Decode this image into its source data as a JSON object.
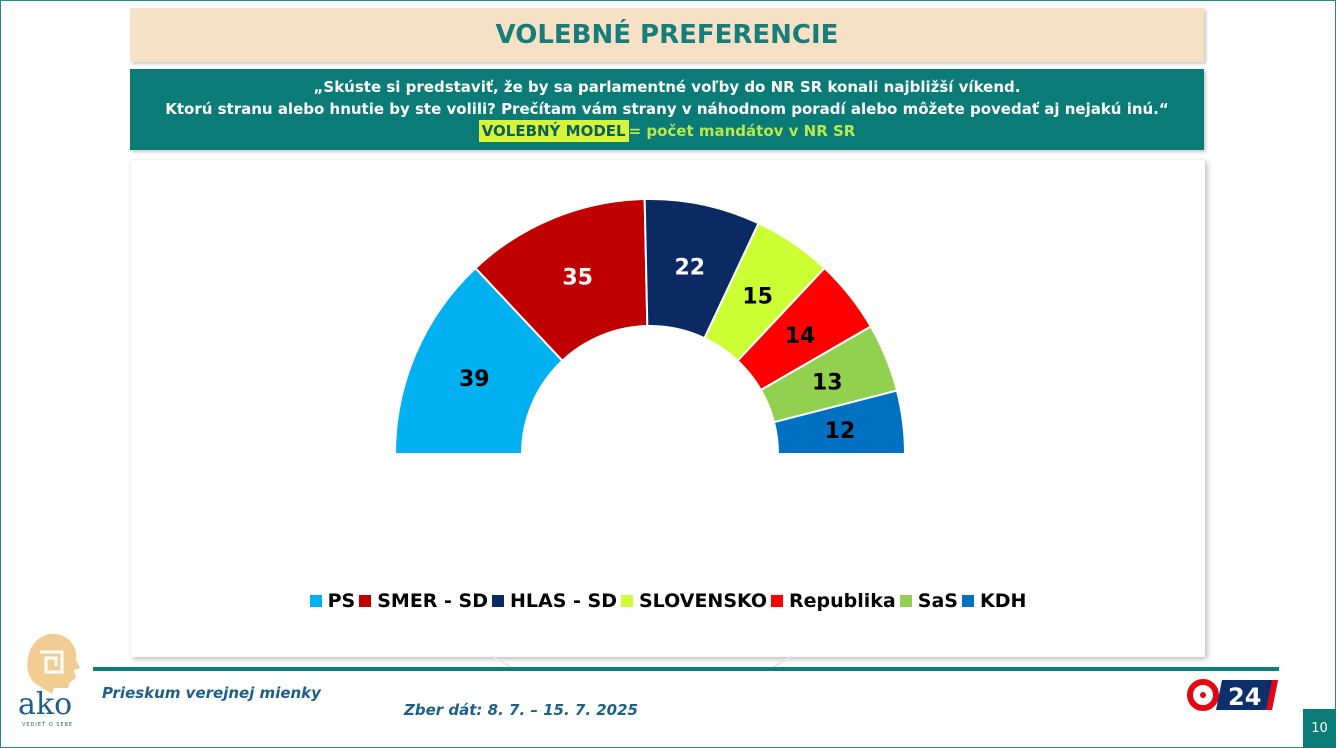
{
  "title": "VOLEBNÉ PREFERENCIE",
  "question": {
    "line1": "„Skúste si predstaviť, že by sa parlamentné voľby do NR SR konali najbližší víkend.",
    "line2": "Ktorú stranu alebo hnutie by ste volili? Prečítam vám strany v náhodnom poradí alebo môžete povedať aj nejakú inú.“",
    "model_label": "VOLEBNÝ MODEL",
    "model_rest": "= počet mandátov v NR SR"
  },
  "chart_data": {
    "type": "pie",
    "subtype": "half-donut",
    "categories": [
      "PS",
      "SMER - SD",
      "HLAS - SD",
      "SLOVENSKO",
      "Republika",
      "SaS",
      "KDH"
    ],
    "values": [
      39,
      35,
      22,
      15,
      14,
      13,
      12
    ],
    "colors": [
      "#00b0f0",
      "#c00000",
      "#0b2a63",
      "#ccff33",
      "#ff0000",
      "#92d050",
      "#0070c0"
    ],
    "legend_position": "bottom"
  },
  "footer": {
    "survey": "Prieskum verejnej mienky",
    "dates": "Zber dát: 8. 7. – 15. 7. 2025",
    "page": "10",
    "logo_ako": "ako",
    "logo_ako_tagline": "VEDIEŤ O SEBE",
    "logo_tv": "24"
  }
}
